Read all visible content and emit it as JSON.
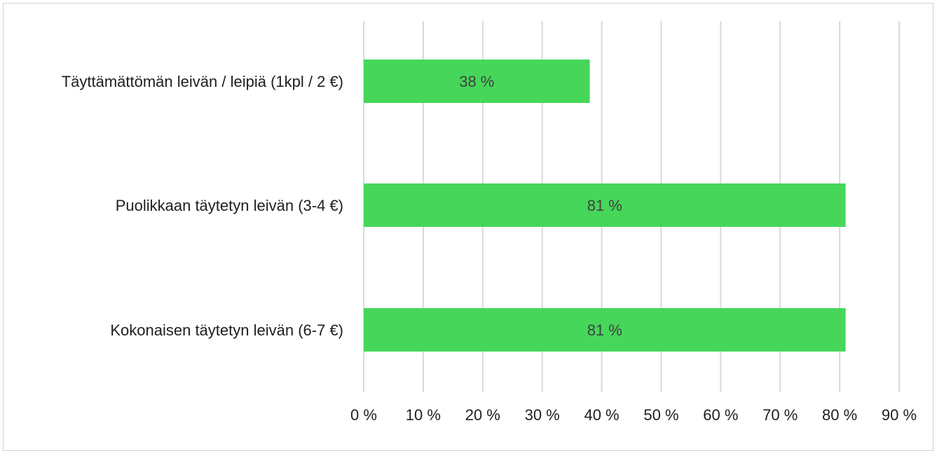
{
  "chart_data": {
    "type": "bar",
    "orientation": "horizontal",
    "title": "",
    "xlabel": "",
    "ylabel": "",
    "categories": [
      "Täyttämättömän leivän / leipiä (1kpl / 2 €)",
      "Puolikkaan täytetyn leivän (3-4 €)",
      "Kokonaisen täytetyn leivän (6-7 €)"
    ],
    "values": [
      38,
      81,
      81
    ],
    "data_labels": [
      "38 %",
      "81 %",
      "81 %"
    ],
    "xlim": [
      0,
      90
    ],
    "x_ticks": [
      "0 %",
      "10 %",
      "20 %",
      "30 %",
      "40 %",
      "50 %",
      "60 %",
      "70 %",
      "80 %",
      "90 %"
    ],
    "grid": "vertical",
    "legend": "none",
    "bar_color": "#46d75a"
  }
}
